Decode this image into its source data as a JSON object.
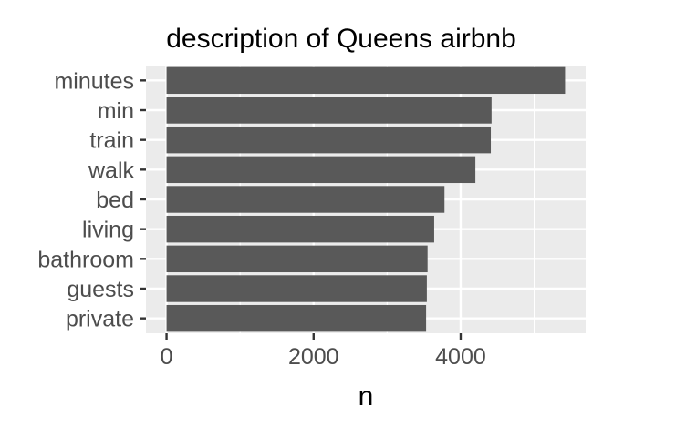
{
  "chart_data": {
    "type": "bar",
    "orientation": "horizontal",
    "title": "description of Queens airbnb",
    "xlabel": "n",
    "ylabel": "",
    "categories": [
      "minutes",
      "min",
      "train",
      "walk",
      "bed",
      "living",
      "bathroom",
      "guests",
      "private"
    ],
    "values": [
      5420,
      4420,
      4410,
      4200,
      3780,
      3640,
      3550,
      3540,
      3530
    ],
    "xlim": [
      -280,
      5700
    ],
    "xticks": [
      0,
      2000,
      4000
    ],
    "xtick_labels": [
      "0",
      "2000",
      "4000"
    ],
    "minor_gridlines": [
      1000,
      3000,
      5000
    ],
    "grid": true,
    "legend": "none",
    "colors": {
      "panel": "#ebebeb",
      "bar": "#595959",
      "grid": "#ffffff",
      "text": "#4d4d4d",
      "title": "#000000",
      "tick": "#333333"
    }
  }
}
